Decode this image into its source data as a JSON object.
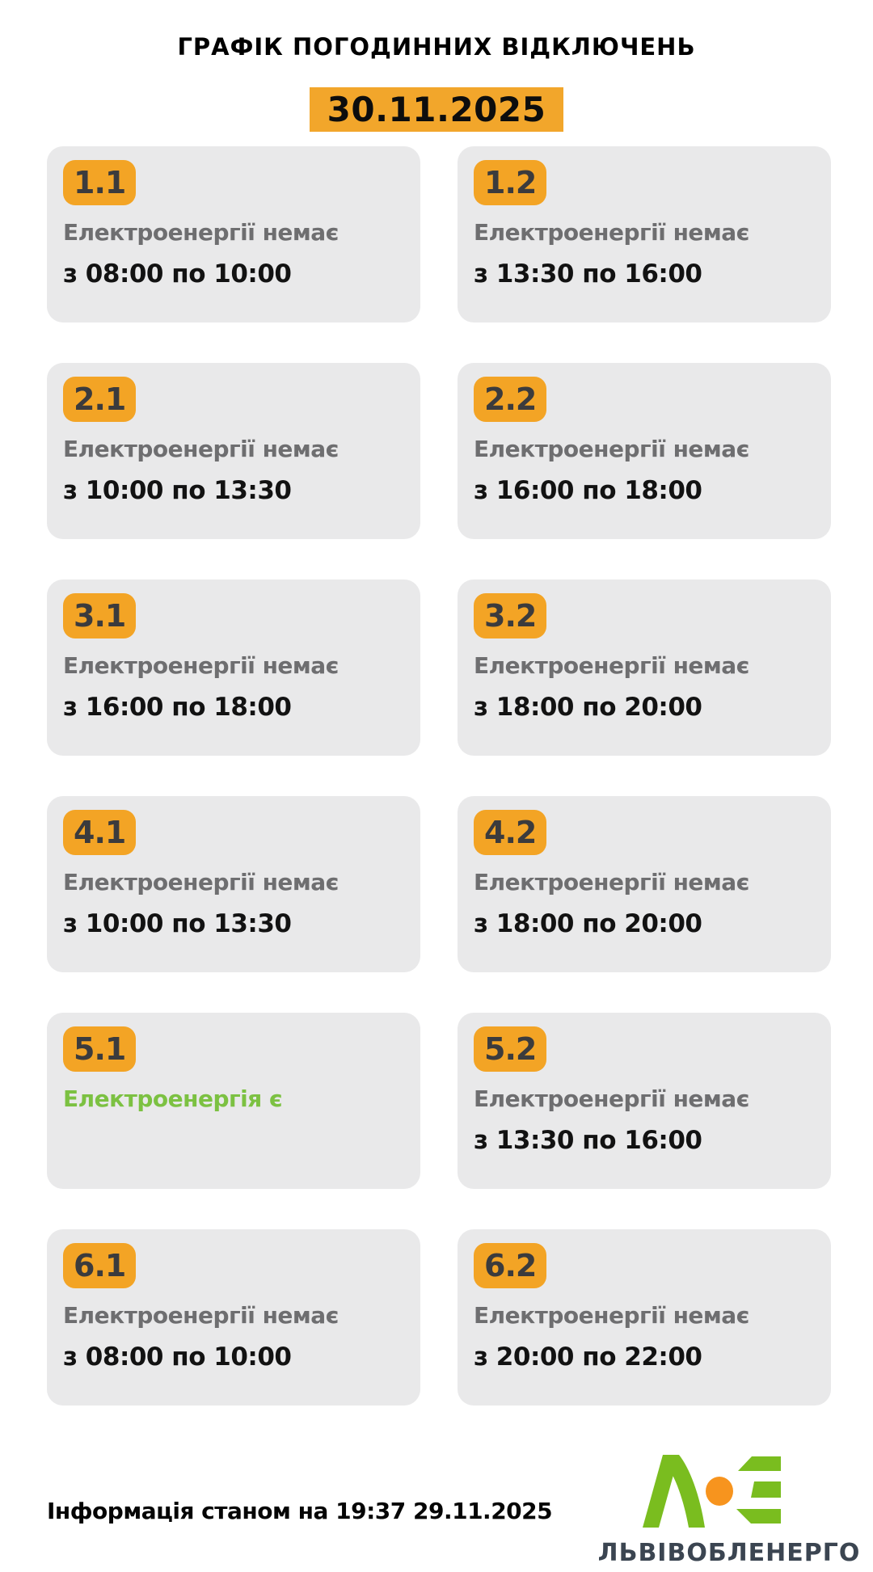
{
  "title": "ГРАФІК ПОГОДИННИХ ВІДКЛЮЧЕНЬ",
  "date": "30.11.2025",
  "cards": [
    {
      "group": "1.1",
      "status": "Електроенергії немає",
      "status_type": "off",
      "time": "з 08:00 по 10:00"
    },
    {
      "group": "1.2",
      "status": "Електроенергії немає",
      "status_type": "off",
      "time": "з 13:30 по 16:00"
    },
    {
      "group": "2.1",
      "status": "Електроенергії немає",
      "status_type": "off",
      "time": "з 10:00 по 13:30"
    },
    {
      "group": "2.2",
      "status": "Електроенергії немає",
      "status_type": "off",
      "time": "з 16:00 по 18:00"
    },
    {
      "group": "3.1",
      "status": "Електроенергії немає",
      "status_type": "off",
      "time": "з 16:00 по 18:00"
    },
    {
      "group": "3.2",
      "status": "Електроенергії немає",
      "status_type": "off",
      "time": "з 18:00 по 20:00"
    },
    {
      "group": "4.1",
      "status": "Електроенергії немає",
      "status_type": "off",
      "time": "з 10:00 по 13:30"
    },
    {
      "group": "4.2",
      "status": "Електроенергії немає",
      "status_type": "off",
      "time": "з 18:00 по 20:00"
    },
    {
      "group": "5.1",
      "status": "Електроенергія є",
      "status_type": "on",
      "time": ""
    },
    {
      "group": "5.2",
      "status": "Електроенергії немає",
      "status_type": "off",
      "time": "з 13:30 по 16:00"
    },
    {
      "group": "6.1",
      "status": "Електроенергії немає",
      "status_type": "off",
      "time": "з 08:00 по 10:00"
    },
    {
      "group": "6.2",
      "status": "Електроенергії немає",
      "status_type": "off",
      "time": "з 20:00 по 22:00"
    }
  ],
  "footer": {
    "updated": "Інформація станом на 19:37 29.11.2025",
    "brand": "ЛЬВІВОБЛЕНЕРГО"
  },
  "icons": {
    "logo_mark": "loe-lambda-circle-e-logo"
  },
  "colors": {
    "accent_orange": "#F3A425",
    "date_badge_orange": "#F2A62B",
    "card_bg": "#E9E9EA",
    "status_off_gray": "#6E6E70",
    "status_on_green": "#7CC142",
    "time_black": "#121212",
    "logo_green": "#7ABD1F",
    "logo_orange": "#F7941E",
    "brand_slate": "#3B4551"
  }
}
